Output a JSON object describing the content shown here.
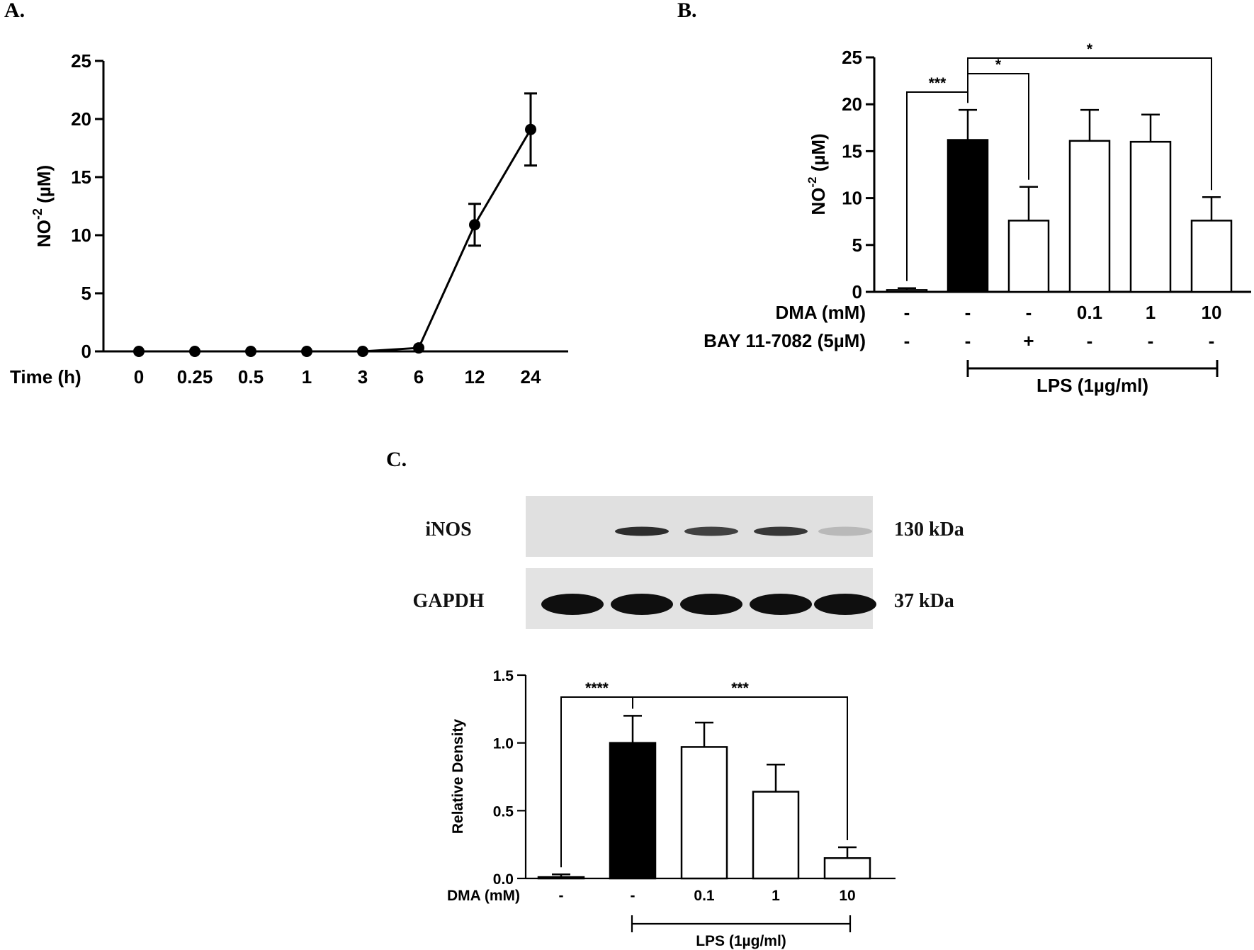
{
  "panels": {
    "a": "A.",
    "b": "B.",
    "c": "C."
  },
  "chart_data": [
    {
      "type": "line",
      "panel": "A.",
      "xlabel": "Time (h)",
      "ylabel": {
        "base": "NO",
        "sup": "-2",
        "unit": " (µM)"
      },
      "categories": [
        "0",
        "0.25",
        "0.5",
        "1",
        "3",
        "6",
        "12",
        "24"
      ],
      "values": [
        0,
        0,
        0,
        0,
        0,
        0.3,
        10.9,
        19.1
      ],
      "errors": [
        0,
        0,
        0,
        0,
        0,
        0.1,
        1.8,
        3.1
      ],
      "ylim": [
        0,
        25
      ],
      "yticks": [
        "0",
        "5",
        "10",
        "15",
        "20",
        "25"
      ]
    },
    {
      "type": "bar",
      "panel": "B.",
      "ylabel": {
        "base": "NO",
        "sup": "-2",
        "unit": " (µM)"
      },
      "values": [
        0.2,
        16.2,
        7.6,
        16.1,
        16.0,
        7.6
      ],
      "errors": [
        0.2,
        3.2,
        3.6,
        3.3,
        2.9,
        2.5
      ],
      "fills": [
        "#ffffff",
        "#000000",
        "#ffffff",
        "#ffffff",
        "#ffffff",
        "#ffffff"
      ],
      "ylim": [
        0,
        25
      ],
      "yticks": [
        "0",
        "5",
        "10",
        "15",
        "20",
        "25"
      ],
      "row_labels": [
        "DMA (mM)",
        "BAY 11-7082 (5µM)"
      ],
      "dma": [
        "-",
        "-",
        "-",
        "0.1",
        "1",
        "10"
      ],
      "bay": [
        "-",
        "-",
        "+",
        "-",
        "-",
        "-"
      ],
      "group_label": "LPS (1µg/ml)",
      "significance": [
        {
          "from": 0,
          "to": 1,
          "label": "***"
        },
        {
          "from": 1,
          "to": 2,
          "label": "*"
        },
        {
          "from": 1,
          "to": 5,
          "label": "*"
        }
      ]
    },
    {
      "type": "bar",
      "panel": "C.",
      "ylabel": "Relative Density",
      "values": [
        0.01,
        1.0,
        0.97,
        0.64,
        0.15
      ],
      "errors": [
        0.02,
        0.2,
        0.18,
        0.2,
        0.08
      ],
      "fills": [
        "#ffffff",
        "#000000",
        "#ffffff",
        "#ffffff",
        "#ffffff"
      ],
      "ylim": [
        0,
        1.5
      ],
      "yticks": [
        "0.0",
        "0.5",
        "1.0",
        "1.5"
      ],
      "row_label": "DMA (mM)",
      "dma": [
        "-",
        "-",
        "0.1",
        "1",
        "10"
      ],
      "group_label": "LPS (1µg/ml)",
      "significance": [
        {
          "from": 0,
          "to": 1,
          "label": "****"
        },
        {
          "from": 1,
          "to": 4,
          "label": "***"
        }
      ]
    }
  ],
  "blot": {
    "rows": [
      {
        "protein": "iNOS",
        "size": "130 kDa",
        "intensities": [
          0,
          0.85,
          0.75,
          0.8,
          0.15
        ]
      },
      {
        "protein": "GAPDH",
        "size": "37 kDa",
        "intensities": [
          1,
          1,
          1,
          1,
          1
        ]
      }
    ]
  }
}
